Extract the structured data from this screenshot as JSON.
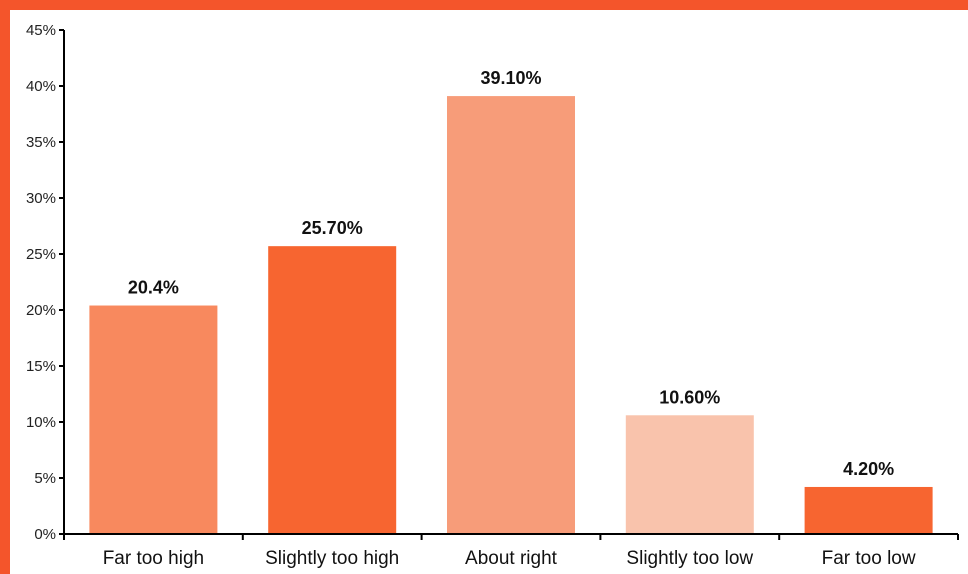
{
  "colors": {
    "frame": "#F4552B",
    "axis": "#000000"
  },
  "chart_data": {
    "type": "bar",
    "categories": [
      "Far too high",
      "Slightly too high",
      "About right",
      "Slightly too low",
      "Far too low"
    ],
    "values": [
      20.4,
      25.7,
      39.1,
      10.6,
      4.2
    ],
    "data_labels": [
      "20.4%",
      "25.70%",
      "39.10%",
      "10.60%",
      "4.20%"
    ],
    "bar_colors": [
      "#F8895E",
      "#F76530",
      "#F79C79",
      "#F9C3AC",
      "#F76530"
    ],
    "ylim": [
      0,
      45
    ],
    "ytick_values": [
      0,
      5,
      10,
      15,
      20,
      25,
      30,
      35,
      40,
      45
    ],
    "ytick_labels": [
      "0%",
      "5%",
      "10%",
      "15%",
      "20%",
      "25%",
      "30%",
      "35%",
      "40%",
      "45%"
    ],
    "title": "",
    "xlabel": "",
    "ylabel": "",
    "grid": false,
    "legend": "none"
  }
}
